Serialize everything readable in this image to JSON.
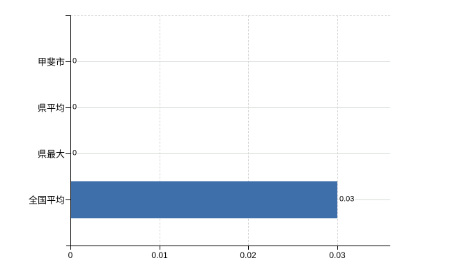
{
  "chart_data": {
    "type": "bar",
    "orientation": "horizontal",
    "title": "",
    "categories": [
      "甲斐市",
      "県平均",
      "県最大",
      "全国平均"
    ],
    "values": [
      0,
      0,
      0,
      0.03
    ],
    "value_labels": [
      "0",
      "0",
      "0",
      "0.03"
    ],
    "x_ticks": [
      0,
      0.01,
      0.02,
      0.03
    ],
    "x_tick_labels": [
      "0",
      "0.01",
      "0.02",
      "0.03"
    ],
    "xlim": [
      0,
      0.036
    ],
    "grid": true,
    "gridline_style": "dashed",
    "legend_position": "none",
    "bar_color": "#3e6fab",
    "axis_color": "#000000",
    "gridline_color": "#d6d6d6",
    "row_line_color": "#d5dcd5",
    "label_color": "#000000",
    "background_color": "#ffffff"
  }
}
